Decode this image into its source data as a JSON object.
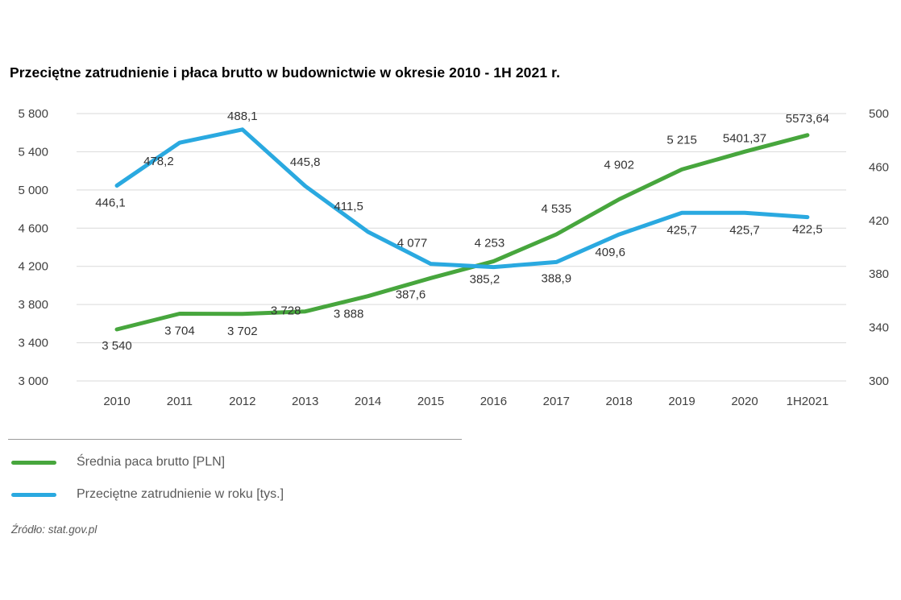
{
  "chart_data": {
    "type": "line",
    "title": "Przeciętne zatrudnienie i płaca brutto w budownictwie w okresie 2010 - 1H 2021 r.",
    "categories": [
      "2010",
      "2011",
      "2012",
      "2013",
      "2014",
      "2015",
      "2016",
      "2017",
      "2018",
      "2019",
      "2020",
      "1H2021"
    ],
    "series": [
      {
        "key": "salary",
        "name": "Średnia paca brutto [PLN]",
        "axis": "left",
        "color": "#47a63d",
        "values": [
          3540,
          3704,
          3702,
          3728,
          3888,
          4077,
          4253,
          4535,
          4902,
          5215,
          5401.37,
          5573.64
        ],
        "labels": [
          "3 540",
          "3 704",
          "3 702",
          "3 728",
          "3 888",
          "4 077",
          "4 253",
          "4 535",
          "4 902",
          "5 215",
          "5401,37",
          "5573,64"
        ],
        "label_dx": [
          0,
          0,
          0,
          -24,
          -24,
          -23,
          -5,
          0,
          0,
          0,
          0,
          0
        ],
        "label_dy": [
          25,
          26,
          26,
          4,
          27,
          -39,
          -18,
          -27,
          -38,
          -32,
          -12,
          -16
        ]
      },
      {
        "key": "employment",
        "name": "Przeciętne zatrudnienie w roku [tys.]",
        "axis": "right",
        "color": "#2aa9e0",
        "values": [
          446.1,
          478.2,
          488.1,
          445.8,
          411.5,
          387.6,
          385.2,
          388.9,
          409.6,
          425.7,
          425.7,
          422.5
        ],
        "labels": [
          "446,1",
          "478,2",
          "488,1",
          "445,8",
          "411,5",
          "387,6",
          "385,2",
          "388,9",
          "409,6",
          "425,7",
          "425,7",
          "422,5"
        ],
        "label_dx": [
          -8,
          -26,
          0,
          0,
          -24,
          -25,
          -11,
          0,
          -11,
          0,
          0,
          0
        ],
        "label_dy": [
          26,
          28,
          -12,
          -25,
          -27,
          43,
          20,
          25,
          27,
          26,
          26,
          20
        ]
      }
    ],
    "left_axis": {
      "min": 3000,
      "max": 5800,
      "ticks": [
        "5 800",
        "5 400",
        "5 000",
        "4 600",
        "4 200",
        "3 800",
        "3 400",
        "3 000"
      ]
    },
    "right_axis": {
      "min": 300,
      "max": 500,
      "ticks": [
        "500",
        "460",
        "420",
        "380",
        "340",
        "300"
      ]
    },
    "grid": true,
    "grid_color": "#d9d9d9",
    "legend_position": "bottom-left",
    "source": "Źródło: stat.gov.pl"
  }
}
